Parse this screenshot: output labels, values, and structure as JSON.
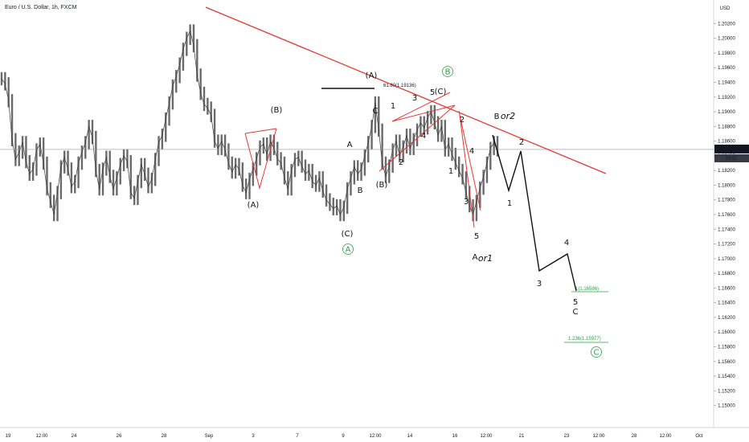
{
  "chart_data": {
    "type": "line",
    "title": "Euro / U.S. Dollar, 1h, FXCM",
    "currency": "USD",
    "last_price": "1.18487",
    "countdown": "23:51",
    "ylim": [
      1.147,
      1.205
    ],
    "y_ticks": [
      "1.15000",
      "1.15200",
      "1.15400",
      "1.15600",
      "1.15800",
      "1.16000",
      "1.16200",
      "1.16400",
      "1.16600",
      "1.16800",
      "1.17000",
      "1.17200",
      "1.17400",
      "1.17600",
      "1.17800",
      "1.18000",
      "1.18200",
      "1.18400",
      "1.18600",
      "1.18800",
      "1.19000",
      "1.19200",
      "1.19400",
      "1.19600",
      "1.19800",
      "1.20000",
      "1.20200"
    ],
    "x_ticks": [
      "19",
      "12:00",
      "24",
      "26",
      "28",
      "Sep",
      "3",
      "7",
      "9",
      "12:00",
      "14",
      "16",
      "12:00",
      "21",
      "23",
      "12:00",
      "28",
      "12:00",
      "Oct"
    ],
    "series": [
      {
        "values": [
          1.1945,
          1.1938,
          1.1915,
          1.1862,
          1.1835,
          1.1845,
          1.1858,
          1.1832,
          1.1815,
          1.1822,
          1.1848,
          1.1856,
          1.183,
          1.1795,
          1.1778,
          1.176,
          1.179,
          1.1825,
          1.1838,
          1.1822,
          1.1798,
          1.1805,
          1.183,
          1.1845,
          1.1858,
          1.188,
          1.1865,
          1.182,
          1.1795,
          1.1822,
          1.1838,
          1.1812,
          1.1795,
          1.181,
          1.1828,
          1.184,
          1.1832,
          1.179,
          1.1782,
          1.1805,
          1.1828,
          1.1815,
          1.1798,
          1.1808,
          1.1835,
          1.1858,
          1.1868,
          1.189,
          1.1912,
          1.1935,
          1.1948,
          1.1965,
          1.1985,
          1.2,
          1.201,
          1.199,
          1.195,
          1.1925,
          1.191,
          1.1905,
          1.1895,
          1.186,
          1.185,
          1.186,
          1.1848,
          1.183,
          1.1818,
          1.1828,
          1.1822,
          1.18,
          1.179,
          1.1808,
          1.1822,
          1.1836,
          1.1852,
          1.1856,
          1.1842,
          1.186,
          1.185,
          1.1836,
          1.183,
          1.181,
          1.1795,
          1.182,
          1.1835,
          1.1838,
          1.1826,
          1.1815,
          1.182,
          1.1805,
          1.18,
          1.181,
          1.1792,
          1.178,
          1.1774,
          1.1768,
          1.1772,
          1.176,
          1.177,
          1.1795,
          1.181,
          1.1825,
          1.1815,
          1.1822,
          1.184,
          1.1858,
          1.188,
          1.1912,
          1.1875,
          1.183,
          1.1812,
          1.1826,
          1.1848,
          1.186,
          1.184,
          1.1852,
          1.1868,
          1.185,
          1.1862,
          1.1875,
          1.1885,
          1.1878,
          1.1892,
          1.19,
          1.1885,
          1.1868,
          1.188,
          1.1848,
          1.1856,
          1.1842,
          1.183,
          1.182,
          1.181,
          1.179,
          1.1772,
          1.176,
          1.1778,
          1.1796,
          1.1812,
          1.183,
          1.185,
          1.1858,
          1.1848
        ]
      }
    ],
    "wave_labels": [
      "(A)",
      "(B)",
      "(C)",
      "(A)",
      "(B)",
      "(C)",
      "A",
      "B",
      "C",
      "1",
      "2",
      "3",
      "4",
      "5",
      "B",
      "or2",
      "A",
      "or1"
    ],
    "circled_labels": [
      "A",
      "B",
      "C"
    ],
    "fib_labels": [
      "61.80(1.19136)",
      "1(1.16586)",
      "1.236(1.15977)"
    ]
  }
}
